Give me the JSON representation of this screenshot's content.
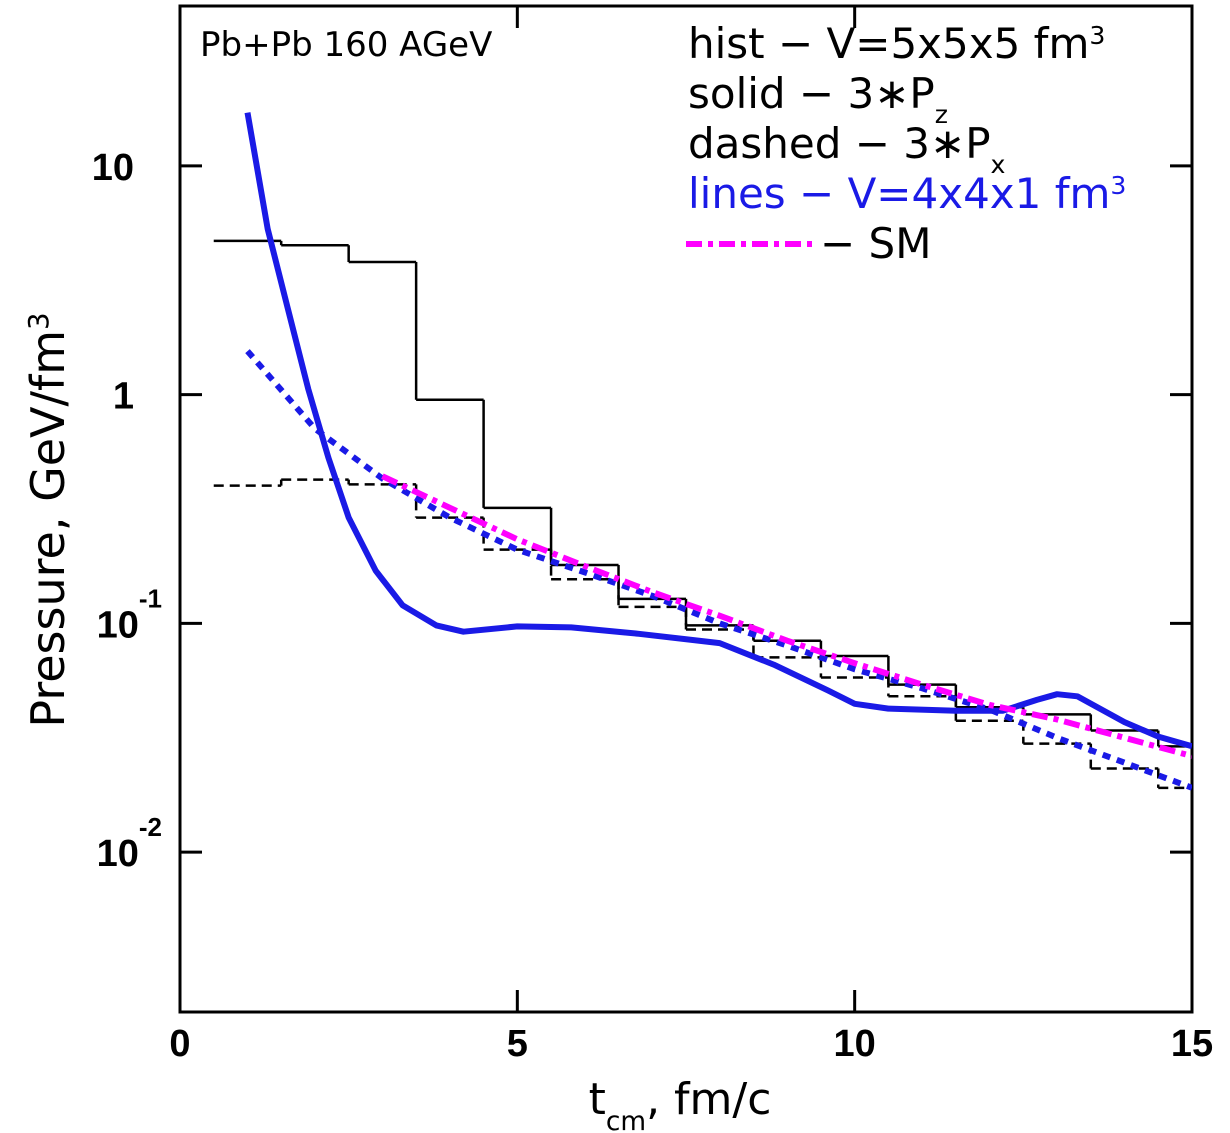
{
  "chart_data": {
    "type": "line",
    "xlabel": {
      "parts": [
        {
          "text": "t"
        },
        {
          "text": "cm",
          "sub": true
        },
        {
          "text": ", fm/c"
        }
      ]
    },
    "ylabel": {
      "parts": [
        {
          "text": "Pressure, GeV/fm"
        },
        {
          "text": "3",
          "sup": true
        }
      ]
    },
    "xlim": [
      0,
      15
    ],
    "xticks": [
      0,
      5,
      10,
      15
    ],
    "ylim": [
      0.002,
      50
    ],
    "yscale": "log",
    "yticks": [
      10,
      1,
      {
        "value": 0.1,
        "label": "10",
        "exponent": "-1"
      },
      {
        "value": 0.01,
        "label": "10",
        "exponent": "-2"
      }
    ],
    "annotations": [
      {
        "text": "Pb+Pb 160 AGeV"
      }
    ],
    "legend": [
      {
        "color": "#000000",
        "parts": [
          {
            "text": "hist  − V=5x5x5 fm"
          },
          {
            "text": "3",
            "sup": true
          }
        ]
      },
      {
        "color": "#000000",
        "parts": [
          {
            "text": "solid  − 3∗P"
          },
          {
            "text": "z",
            "sub": true
          }
        ]
      },
      {
        "color": "#000000",
        "parts": [
          {
            "text": "dashed − 3∗P"
          },
          {
            "text": "x",
            "sub": true
          }
        ]
      },
      {
        "color": "#1a1ae6",
        "parts": [
          {
            "text": "lines − V=4x4x1 fm"
          },
          {
            "text": "3",
            "sup": true
          }
        ]
      },
      {
        "color": "#000000",
        "parts": [
          {
            "text": "− SM"
          }
        ]
      }
    ],
    "series": [
      {
        "type": "step",
        "style": "solid",
        "color": "#000000",
        "width": 2.5,
        "bins": [
          0.5,
          1.5,
          2.5,
          3.5,
          4.5,
          5.5,
          6.5,
          7.5,
          8.5,
          9.5,
          10.5,
          11.5,
          12.5,
          13.5,
          14.5,
          15.5
        ],
        "values": [
          4.7,
          4.5,
          3.8,
          0.95,
          0.32,
          0.18,
          0.128,
          0.098,
          0.084,
          0.072,
          0.054,
          0.043,
          0.04,
          0.034,
          0.029
        ]
      },
      {
        "type": "step",
        "style": "dashed",
        "color": "#000000",
        "width": 2.5,
        "bins": [
          0.5,
          1.5,
          2.5,
          3.5,
          4.5,
          5.5,
          6.5,
          7.5,
          8.5,
          9.5,
          10.5,
          11.5,
          12.5,
          13.5,
          14.5,
          15.5
        ],
        "values": [
          0.4,
          0.425,
          0.405,
          0.29,
          0.21,
          0.156,
          0.118,
          0.094,
          0.071,
          0.058,
          0.048,
          0.0375,
          0.0298,
          0.0232,
          0.0191
        ]
      },
      {
        "type": "line",
        "style": "solid",
        "color": "#1a1ae6",
        "width": 6,
        "x": [
          1.0,
          1.3,
          1.6,
          1.9,
          2.2,
          2.5,
          2.9,
          3.3,
          3.8,
          4.2,
          5.0,
          5.8,
          6.8,
          8.0,
          8.8,
          9.6,
          10.0,
          10.5,
          11.5,
          12.2,
          12.7,
          13.0,
          13.3,
          14.0,
          14.5,
          15.0
        ],
        "values": [
          17.1,
          5.3,
          2.37,
          1.06,
          0.53,
          0.29,
          0.17,
          0.12,
          0.098,
          0.092,
          0.097,
          0.096,
          0.09,
          0.082,
          0.066,
          0.051,
          0.0445,
          0.0424,
          0.0415,
          0.0415,
          0.0463,
          0.049,
          0.048,
          0.037,
          0.032,
          0.029
        ]
      },
      {
        "type": "line",
        "style": "dotted",
        "color": "#1a1ae6",
        "width": 6,
        "x": [
          1,
          2,
          3,
          4,
          5,
          6,
          7,
          8,
          9,
          10,
          11,
          12,
          13,
          14,
          15
        ],
        "values": [
          1.55,
          0.71,
          0.43,
          0.29,
          0.21,
          0.167,
          0.132,
          0.1,
          0.08,
          0.063,
          0.052,
          0.042,
          0.0316,
          0.0246,
          0.0191
        ]
      },
      {
        "type": "line",
        "style": "dashdot",
        "color": "#ff00ff",
        "width": 6,
        "x": [
          3,
          4,
          5,
          6,
          7,
          8,
          9,
          10,
          11,
          12,
          13,
          14,
          15
        ],
        "values": [
          0.44,
          0.32,
          0.233,
          0.178,
          0.137,
          0.108,
          0.084,
          0.067,
          0.054,
          0.044,
          0.038,
          0.0316,
          0.0263
        ]
      }
    ]
  }
}
